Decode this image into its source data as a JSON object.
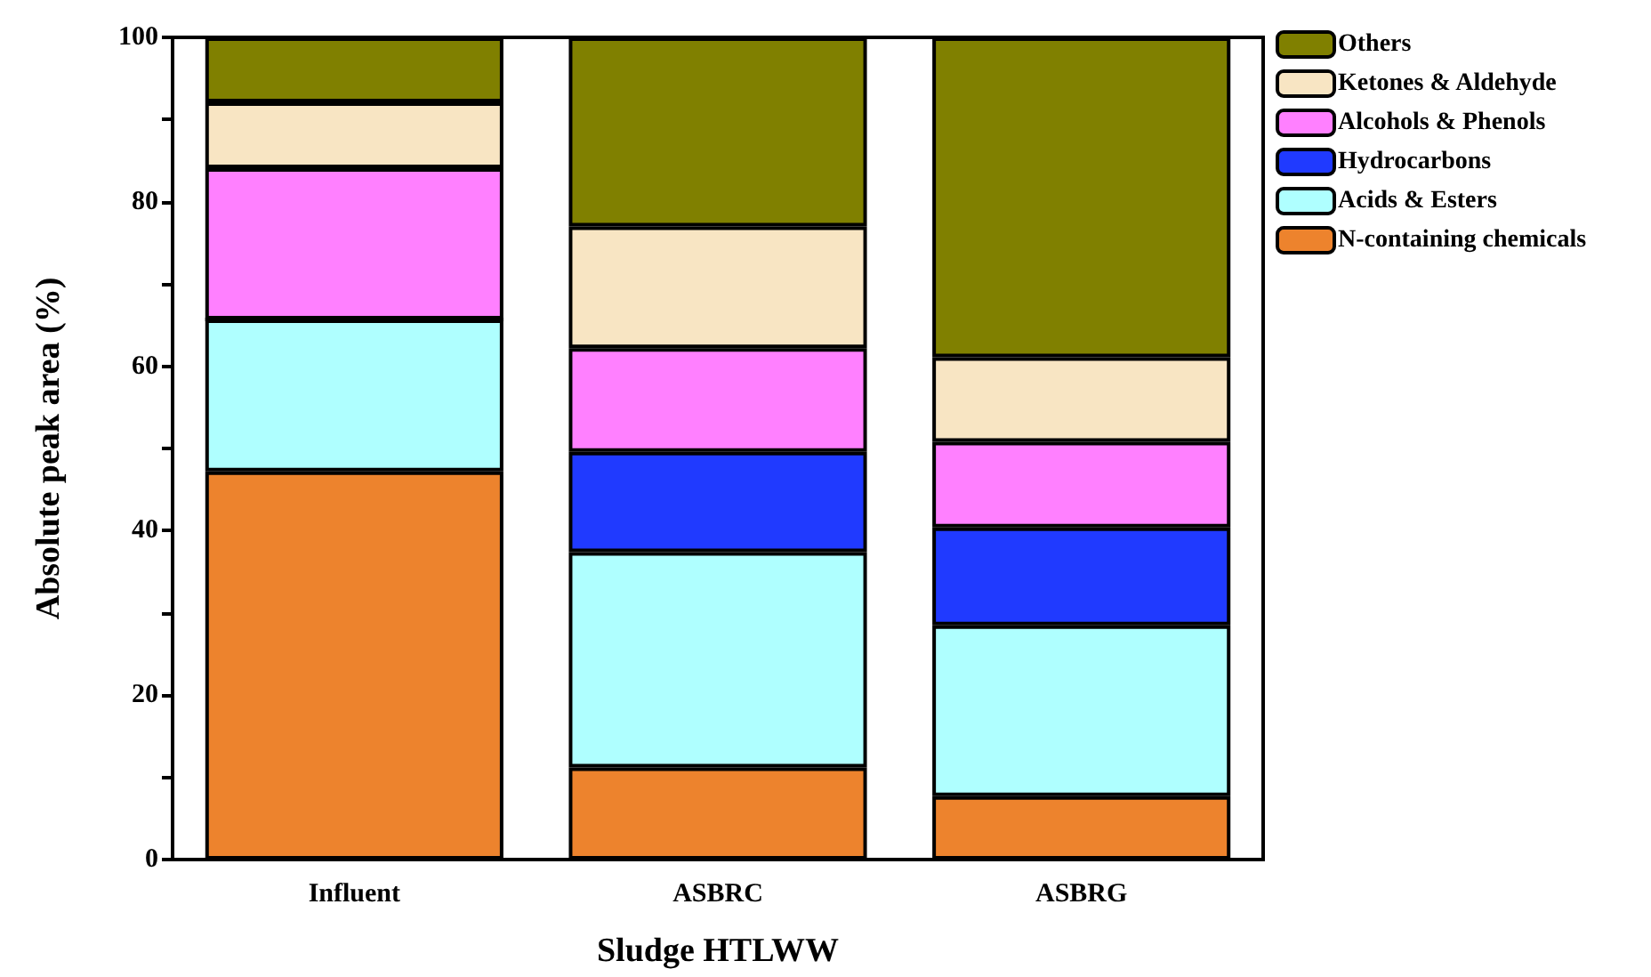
{
  "chart_data": {
    "type": "bar",
    "stacked": true,
    "xlabel": "Sludge HTLWW",
    "ylabel": "Absolute peak area (%)",
    "categories": [
      "Influent",
      "ASBRC",
      "ASBRG"
    ],
    "series": [
      {
        "name": "N-containing chemicals",
        "color": "#ed832d",
        "values": [
          47.2,
          11.2,
          7.7
        ]
      },
      {
        "name": "Acids & Esters",
        "color": "#afffff",
        "values": [
          18.5,
          26.2,
          20.8
        ]
      },
      {
        "name": "Hydrocarbons",
        "color": "#203aff",
        "values": [
          0,
          12.2,
          11.9
        ]
      },
      {
        "name": "Alcohols & Phenols",
        "color": "#ff80ff",
        "values": [
          18.4,
          12.6,
          10.4
        ]
      },
      {
        "name": "Ketones & Aldehyde",
        "color": "#f8e5c3",
        "values": [
          8.0,
          14.8,
          10.3
        ]
      },
      {
        "name": "Others",
        "color": "#808000",
        "values": [
          7.9,
          23.0,
          38.9
        ]
      }
    ],
    "ylim": [
      0,
      100
    ],
    "yticks": [
      0,
      {
        "value": 10,
        "label": null
      },
      20,
      {
        "value": 30,
        "label": null
      },
      40,
      {
        "value": 50,
        "label": null
      },
      60,
      {
        "value": 70,
        "label": null
      },
      80,
      {
        "value": 90,
        "label": null
      },
      100
    ],
    "grid": false,
    "legend": "top right"
  }
}
